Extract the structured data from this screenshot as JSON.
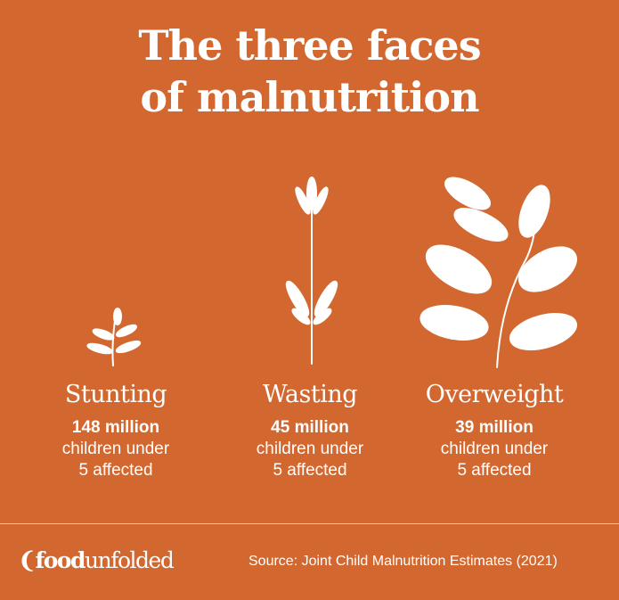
{
  "title_line1": "The three faces",
  "title_line2": "of malnutrition",
  "colors": {
    "background": "#d2672f",
    "text": "#ffffff"
  },
  "items": [
    {
      "name": "Stunting",
      "value": "148 million",
      "desc1": "children under",
      "desc2": "5 affected",
      "icon": "small-plant-icon"
    },
    {
      "name": "Wasting",
      "value": "45 million",
      "desc1": "children under",
      "desc2": "5 affected",
      "icon": "thin-plant-icon"
    },
    {
      "name": "Overweight",
      "value": "39 million",
      "desc1": "children under",
      "desc2": "5 affected",
      "icon": "large-leafy-plant-icon"
    }
  ],
  "footer": {
    "logo_food": "food",
    "logo_unfolded": "unfolded",
    "source": "Source:  Joint Child Malnutrition Estimates (2021)"
  }
}
